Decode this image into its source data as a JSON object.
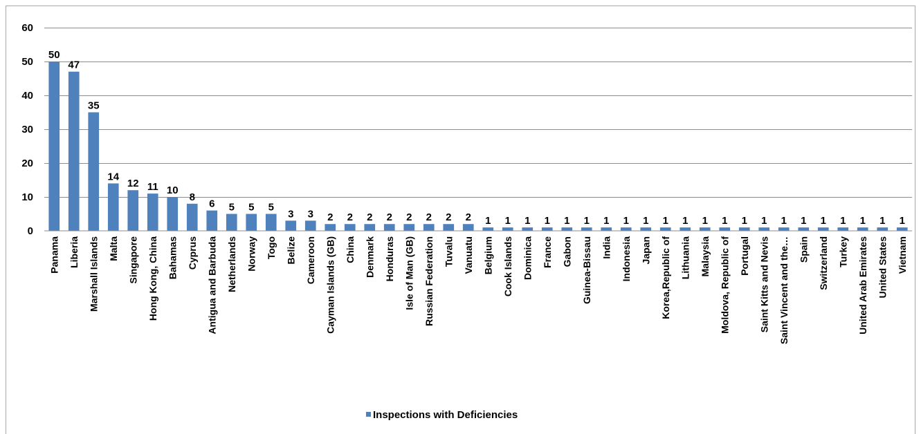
{
  "chart_data": {
    "type": "bar",
    "title": "",
    "xlabel": "",
    "ylabel": "",
    "ylim": [
      0,
      60
    ],
    "yticks": [
      0,
      10,
      20,
      30,
      40,
      50,
      60
    ],
    "grid": true,
    "legend_position": "bottom",
    "bar_color": "#4f81bd",
    "categories": [
      "Panama",
      "Liberia",
      "Marshall Islands",
      "Malta",
      "Singapore",
      "Hong Kong, China",
      "Bahamas",
      "Cyprus",
      "Antigua and Barbuda",
      "Netherlands",
      "Norway",
      "Togo",
      "Belize",
      "Cameroon",
      "Cayman Islands (GB)",
      "China",
      "Denmark",
      "Honduras",
      "Isle of Man (GB)",
      "Russian Federation",
      "Tuvalu",
      "Vanuatu",
      "Belgium",
      "Cook Islands",
      "Dominica",
      "France",
      "Gabon",
      "Guinea-Bissau",
      "India",
      "Indonesia",
      "Japan",
      "Korea,Republic of",
      "Lithuania",
      "Malaysia",
      "Moldova, Republic of",
      "Portugal",
      "Saint Kitts and Nevis",
      "Saint Vincent and the…",
      "Spain",
      "Switzerland",
      "Turkey",
      "United Arab Emirates",
      "United States",
      "Vietnam"
    ],
    "series": [
      {
        "name": "Inspections with Deficiencies",
        "values": [
          50,
          47,
          35,
          14,
          12,
          11,
          10,
          8,
          6,
          5,
          5,
          5,
          3,
          3,
          2,
          2,
          2,
          2,
          2,
          2,
          2,
          2,
          1,
          1,
          1,
          1,
          1,
          1,
          1,
          1,
          1,
          1,
          1,
          1,
          1,
          1,
          1,
          1,
          1,
          1,
          1,
          1,
          1,
          1
        ]
      }
    ]
  }
}
